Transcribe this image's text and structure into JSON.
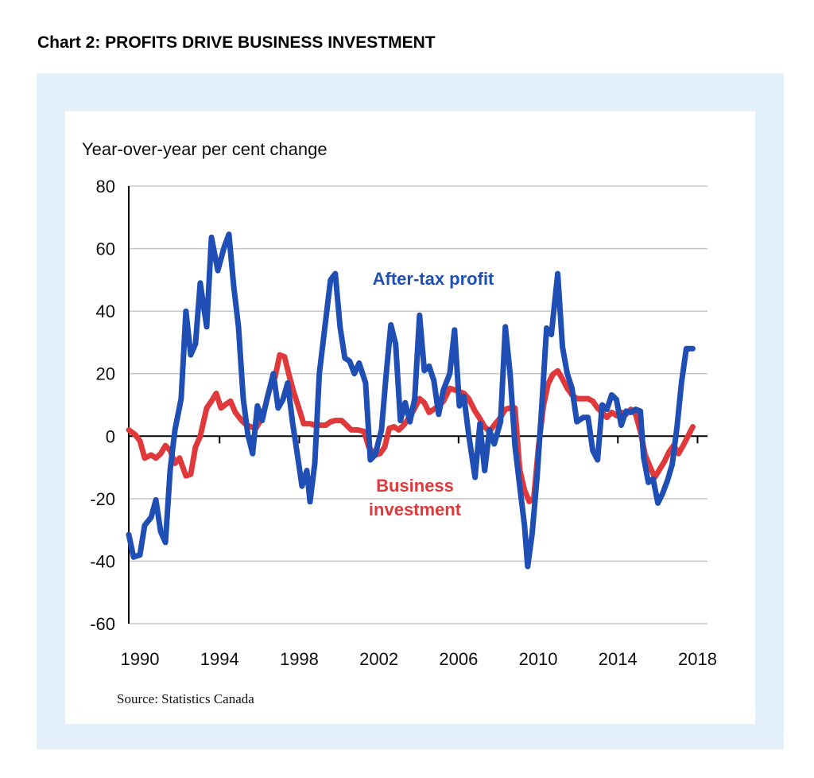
{
  "chart_data": {
    "type": "line",
    "title": "Chart 2: PROFITS DRIVE BUSINESS INVESTMENT",
    "ylabel": "Year-over-year per cent change",
    "source": "Source: Statistics Canada",
    "annotations": [
      {
        "lines": [
          "After-tax profit"
        ],
        "color": "#1f4fb4"
      },
      {
        "lines": [
          "Business",
          "investment"
        ],
        "color": "#e0393b"
      }
    ],
    "xlim": [
      1989.44,
      2018.5
    ],
    "xticks": [
      1990,
      1994,
      1998,
      2002,
      2006,
      2010,
      2014,
      2018
    ],
    "ylim": [
      -60,
      80
    ],
    "yticks": [
      -60,
      -40,
      -20,
      0,
      20,
      40,
      60,
      80
    ],
    "grid": true,
    "series": [
      {
        "name": "After-tax profit",
        "color": "#1f4fb4",
        "x": [
          1989.44,
          1989.68,
          1990,
          1990.24,
          1990.56,
          1990.8,
          1991.04,
          1991.28,
          1991.52,
          1991.76,
          1992.07,
          1992.31,
          1992.55,
          1992.79,
          1993.03,
          1993.35,
          1993.59,
          1993.91,
          1994.23,
          1994.47,
          1994.71,
          1994.95,
          1995.19,
          1995.42,
          1995.66,
          1995.9,
          1996.14,
          1996.38,
          1996.7,
          1996.94,
          1997.18,
          1997.42,
          1997.66,
          1997.98,
          1998.14,
          1998.38,
          1998.54,
          1998.78,
          1999.01,
          1999.25,
          1999.57,
          1999.81,
          2000.05,
          2000.29,
          2000.53,
          2000.77,
          2001.01,
          2001.33,
          2001.57,
          2001.81,
          2002.13,
          2002.37,
          2002.6,
          2002.84,
          2003.08,
          2003.32,
          2003.56,
          2003.8,
          2004.04,
          2004.28,
          2004.52,
          2004.76,
          2005,
          2005.24,
          2005.56,
          2005.8,
          2006.04,
          2006.27,
          2006.51,
          2006.83,
          2007.07,
          2007.31,
          2007.55,
          2007.79,
          2008.11,
          2008.35,
          2008.59,
          2008.83,
          2009.07,
          2009.31,
          2009.47,
          2009.7,
          2009.94,
          2010.18,
          2010.42,
          2010.66,
          2010.98,
          2011.22,
          2011.46,
          2011.7,
          2011.94,
          2012.26,
          2012.5,
          2012.74,
          2012.98,
          2013.21,
          2013.45,
          2013.69,
          2013.93,
          2014.17,
          2014.41,
          2014.65,
          2014.89,
          2015.13,
          2015.29,
          2015.53,
          2015.77,
          2016.01,
          2016.25,
          2016.49,
          2016.73,
          2016.97,
          2017.2,
          2017.44,
          2017.76
        ],
        "values": [
          -31.5,
          -38.7,
          -38,
          -28.5,
          -26,
          -20.4,
          -30.5,
          -34,
          -10.7,
          2,
          12,
          40,
          26,
          29.5,
          49,
          35,
          63.6,
          53,
          60.5,
          64.6,
          48,
          35,
          12,
          0.5,
          -5.6,
          9.7,
          5,
          12,
          20,
          9,
          11.7,
          17,
          4.6,
          -9,
          -16,
          -11,
          -21,
          -8.7,
          20,
          33,
          50,
          52,
          35,
          25,
          24,
          20,
          23.4,
          17,
          -7.6,
          -6,
          2,
          20,
          35.6,
          29.5,
          5,
          10.7,
          4.6,
          12,
          38.7,
          21,
          22.4,
          17.8,
          7,
          14.8,
          20,
          34,
          9.7,
          12.7,
          0.5,
          -13.2,
          4,
          -11,
          2,
          -2.5,
          4.6,
          35,
          20,
          -3,
          -16,
          -28.5,
          -41.7,
          -31,
          -13.2,
          9.7,
          34.6,
          32.5,
          52,
          28.5,
          20,
          15.3,
          4.6,
          6,
          6,
          -4.6,
          -7.6,
          10,
          8.6,
          13.2,
          11.7,
          3.5,
          8,
          7.6,
          8.6,
          8,
          -6.6,
          -14.8,
          -13.7,
          -21.4,
          -18.3,
          -14.2,
          -9,
          3,
          17.3,
          28,
          28
        ]
      },
      {
        "name": "Business investment",
        "color": "#e0393b",
        "x": [
          1989.44,
          1989.76,
          1990,
          1990.24,
          1990.56,
          1990.8,
          1991.04,
          1991.28,
          1991.52,
          1991.76,
          1991.99,
          1992.31,
          1992.55,
          1992.79,
          1993.03,
          1993.35,
          1993.59,
          1993.83,
          1994.07,
          1994.31,
          1994.55,
          1994.79,
          1995.11,
          1995.35,
          1995.58,
          1995.82,
          1996.06,
          1996.3,
          1996.54,
          1996.78,
          1997.02,
          1997.26,
          1997.5,
          1997.74,
          1997.98,
          1998.22,
          1998.54,
          1998.78,
          1999.01,
          1999.33,
          1999.57,
          1999.81,
          2000.13,
          2000.37,
          2000.61,
          2000.93,
          2001.25,
          2001.49,
          2001.81,
          2002.05,
          2002.29,
          2002.52,
          2002.76,
          2003,
          2003.24,
          2003.48,
          2003.72,
          2004.04,
          2004.28,
          2004.52,
          2004.76,
          2005,
          2005.24,
          2005.56,
          2005.8,
          2006.04,
          2006.27,
          2006.51,
          2006.83,
          2007.07,
          2007.31,
          2007.55,
          2007.79,
          2008.11,
          2008.35,
          2008.59,
          2008.83,
          2009.07,
          2009.31,
          2009.55,
          2009.78,
          2010.02,
          2010.26,
          2010.5,
          2010.74,
          2010.98,
          2011.22,
          2011.46,
          2011.7,
          2011.94,
          2012.26,
          2012.5,
          2012.74,
          2012.98,
          2013.21,
          2013.45,
          2013.69,
          2013.93,
          2014.17,
          2014.41,
          2014.65,
          2014.89,
          2015.13,
          2015.37,
          2015.61,
          2015.85,
          2016.09,
          2016.33,
          2016.57,
          2016.8,
          2017.04,
          2017.28,
          2017.52,
          2017.76
        ],
        "values": [
          2,
          0.5,
          -1.5,
          -7,
          -6,
          -7,
          -5.6,
          -3,
          -4.6,
          -8.7,
          -7,
          -12.7,
          -12.2,
          -3.5,
          0,
          9,
          11.2,
          13.7,
          9,
          10.2,
          11.2,
          7.6,
          5,
          3.5,
          3,
          2.5,
          5,
          9.7,
          15.8,
          18.8,
          26,
          25.4,
          19.3,
          13.7,
          9,
          4,
          4,
          3.5,
          3.5,
          3.5,
          4.6,
          5,
          5,
          3.5,
          2,
          2,
          1.5,
          -3.5,
          -6,
          -5.6,
          -3.5,
          2.5,
          3,
          2,
          3.5,
          5.6,
          8,
          12,
          10.7,
          7.6,
          8.6,
          9.7,
          11.2,
          15.3,
          14.8,
          14.2,
          13.7,
          12,
          8,
          5.6,
          3,
          1.5,
          3.5,
          6,
          8.6,
          9,
          9,
          -10.7,
          -17.3,
          -20.9,
          -19.8,
          -3,
          9.7,
          16.8,
          19.8,
          20.9,
          18.3,
          15.3,
          13.2,
          12,
          12,
          12,
          11.2,
          9,
          7.6,
          6,
          7.6,
          6.6,
          7.6,
          7,
          8.6,
          7,
          1.5,
          -6,
          -9.7,
          -13.2,
          -10.7,
          -8.2,
          -5,
          -3,
          -5.6,
          -3,
          0,
          3
        ]
      }
    ]
  }
}
